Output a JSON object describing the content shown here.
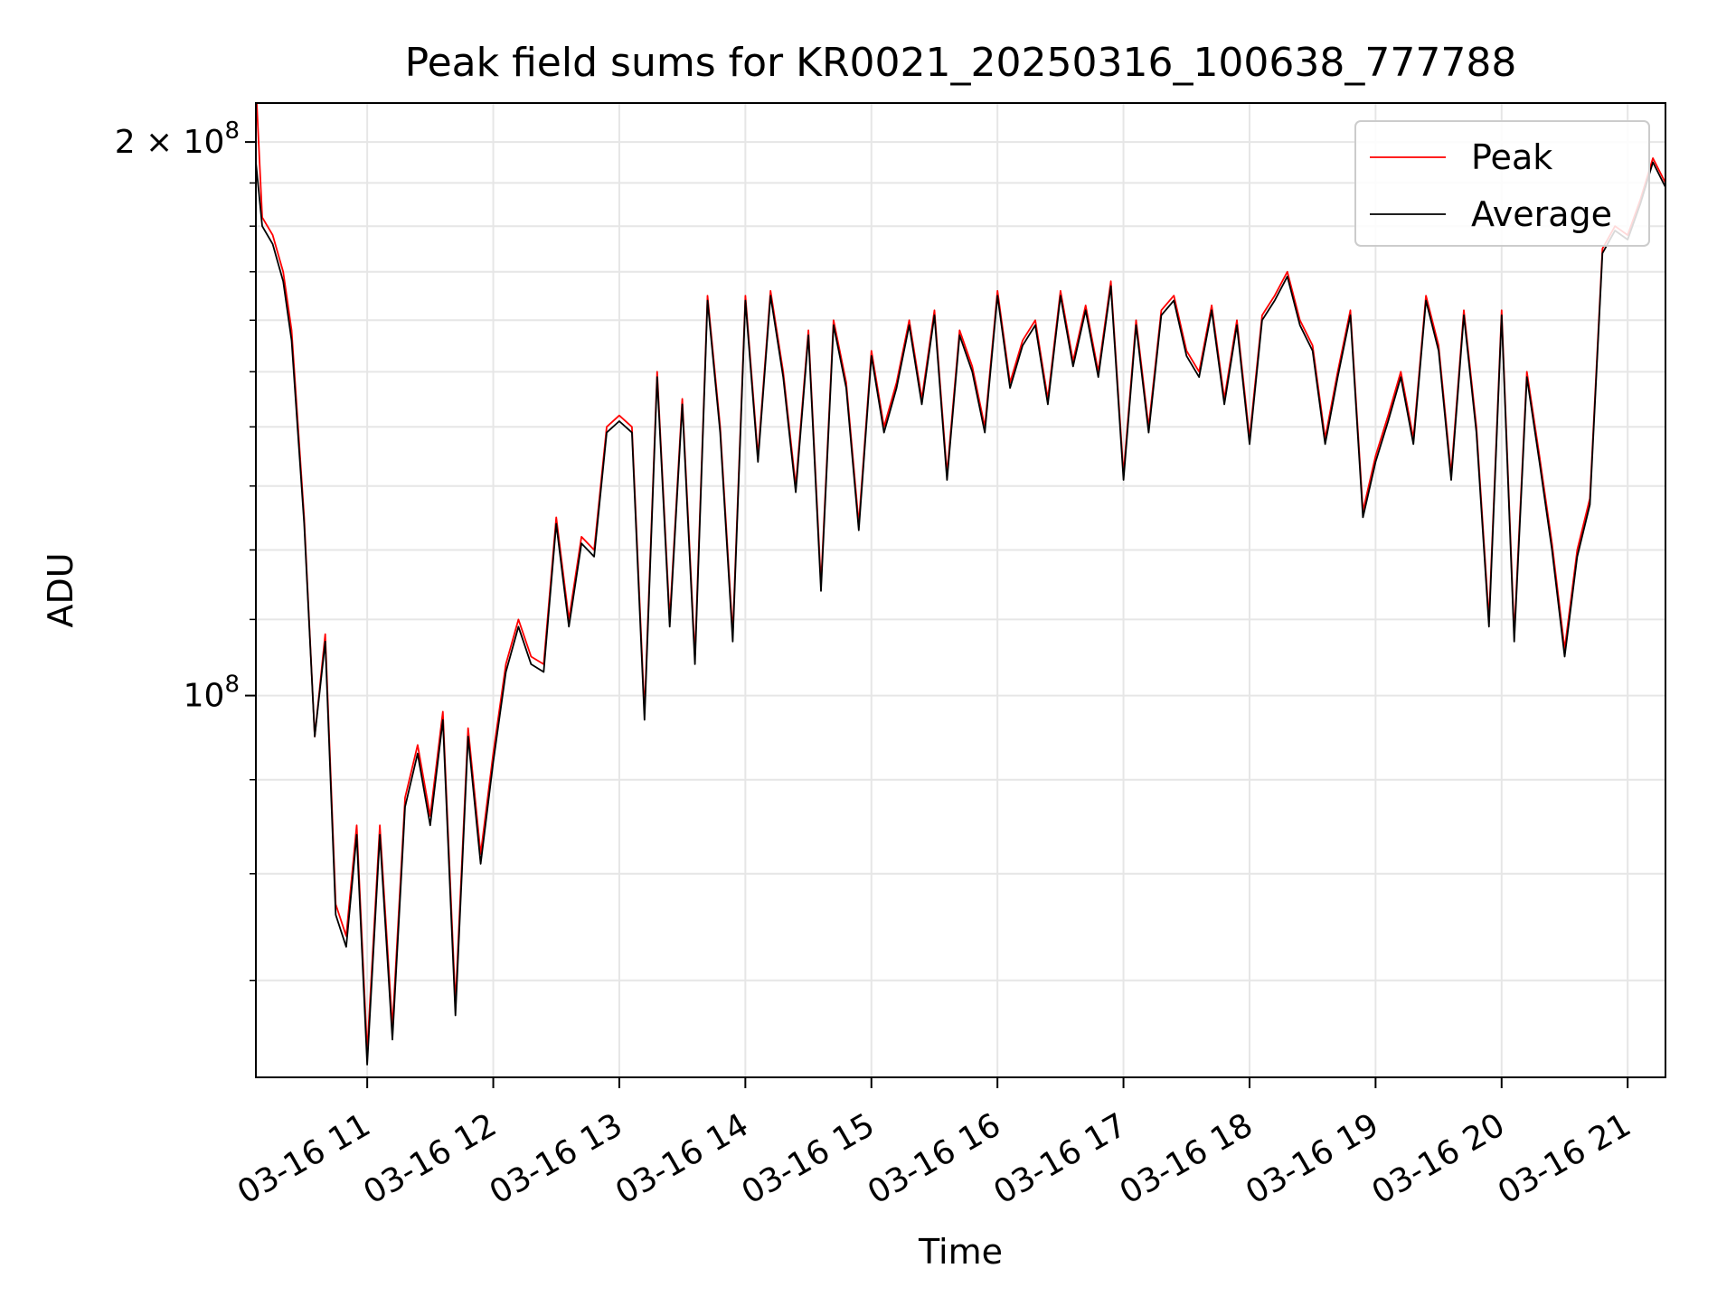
{
  "chart_data": {
    "type": "line",
    "title": "Peak field sums for KR0021_20250316_100638_777788",
    "xlabel": "Time",
    "ylabel": "ADU",
    "y_scale": "log",
    "ylim": [
      62000000,
      210000000
    ],
    "xlim": [
      "03-16 10:07",
      "03-16 21:18"
    ],
    "grid": true,
    "legend_position": "top-right",
    "x_ticks": [
      "03-16 11",
      "03-16 12",
      "03-16 13",
      "03-16 14",
      "03-16 15",
      "03-16 16",
      "03-16 17",
      "03-16 18",
      "03-16 19",
      "03-16 20",
      "03-16 21"
    ],
    "y_ticks": [
      {
        "value": 100000000,
        "base": "10",
        "exponent": "8",
        "prefix": ""
      },
      {
        "value": 200000000,
        "base": "10",
        "exponent": "8",
        "prefix": "2 × "
      }
    ],
    "x": [
      "03-16 10:07",
      "03-16 10:10",
      "03-16 10:15",
      "03-16 10:20",
      "03-16 10:24",
      "03-16 10:30",
      "03-16 10:35",
      "03-16 10:40",
      "03-16 10:45",
      "03-16 10:50",
      "03-16 10:55",
      "03-16 11:00",
      "03-16 11:06",
      "03-16 11:12",
      "03-16 11:18",
      "03-16 11:24",
      "03-16 11:30",
      "03-16 11:36",
      "03-16 11:42",
      "03-16 11:48",
      "03-16 11:54",
      "03-16 12:00",
      "03-16 12:06",
      "03-16 12:12",
      "03-16 12:18",
      "03-16 12:24",
      "03-16 12:30",
      "03-16 12:36",
      "03-16 12:42",
      "03-16 12:48",
      "03-16 12:54",
      "03-16 13:00",
      "03-16 13:06",
      "03-16 13:12",
      "03-16 13:18",
      "03-16 13:24",
      "03-16 13:30",
      "03-16 13:36",
      "03-16 13:42",
      "03-16 13:48",
      "03-16 13:54",
      "03-16 14:00",
      "03-16 14:06",
      "03-16 14:12",
      "03-16 14:18",
      "03-16 14:24",
      "03-16 14:30",
      "03-16 14:36",
      "03-16 14:42",
      "03-16 14:48",
      "03-16 14:54",
      "03-16 15:00",
      "03-16 15:06",
      "03-16 15:12",
      "03-16 15:18",
      "03-16 15:24",
      "03-16 15:30",
      "03-16 15:36",
      "03-16 15:42",
      "03-16 15:48",
      "03-16 15:54",
      "03-16 16:00",
      "03-16 16:06",
      "03-16 16:12",
      "03-16 16:18",
      "03-16 16:24",
      "03-16 16:30",
      "03-16 16:36",
      "03-16 16:42",
      "03-16 16:48",
      "03-16 16:54",
      "03-16 17:00",
      "03-16 17:06",
      "03-16 17:12",
      "03-16 17:18",
      "03-16 17:24",
      "03-16 17:30",
      "03-16 17:36",
      "03-16 17:42",
      "03-16 17:48",
      "03-16 17:54",
      "03-16 18:00",
      "03-16 18:06",
      "03-16 18:12",
      "03-16 18:18",
      "03-16 18:24",
      "03-16 18:30",
      "03-16 18:36",
      "03-16 18:42",
      "03-16 18:48",
      "03-16 18:54",
      "03-16 19:00",
      "03-16 19:06",
      "03-16 19:12",
      "03-16 19:18",
      "03-16 19:24",
      "03-16 19:30",
      "03-16 19:36",
      "03-16 19:42",
      "03-16 19:48",
      "03-16 19:54",
      "03-16 20:00",
      "03-16 20:06",
      "03-16 20:12",
      "03-16 20:18",
      "03-16 20:24",
      "03-16 20:30",
      "03-16 20:36",
      "03-16 20:42",
      "03-16 20:48",
      "03-16 20:54",
      "03-16 21:00",
      "03-16 21:06",
      "03-16 21:12",
      "03-16 21:18"
    ],
    "series": [
      {
        "name": "Peak",
        "color": "#ff0000",
        "values": [
          215000000,
          182000000,
          178000000,
          170000000,
          158000000,
          125000000,
          95000000,
          108000000,
          77000000,
          74000000,
          85000000,
          64000000,
          85000000,
          66000000,
          88000000,
          94000000,
          86000000,
          98000000,
          68000000,
          96000000,
          82000000,
          93000000,
          104000000,
          110000000,
          105000000,
          104000000,
          125000000,
          110000000,
          122000000,
          120000000,
          140000000,
          142000000,
          140000000,
          98000000,
          150000000,
          110000000,
          145000000,
          105000000,
          165000000,
          140000000,
          108000000,
          165000000,
          135000000,
          166000000,
          150000000,
          130000000,
          158000000,
          115000000,
          160000000,
          148000000,
          124000000,
          154000000,
          140000000,
          148000000,
          160000000,
          145000000,
          162000000,
          132000000,
          158000000,
          151000000,
          140000000,
          166000000,
          148000000,
          156000000,
          160000000,
          145000000,
          166000000,
          152000000,
          163000000,
          150000000,
          168000000,
          132000000,
          160000000,
          140000000,
          162000000,
          165000000,
          154000000,
          150000000,
          163000000,
          145000000,
          160000000,
          138000000,
          161000000,
          165000000,
          170000000,
          160000000,
          155000000,
          138000000,
          150000000,
          162000000,
          126000000,
          135000000,
          142000000,
          150000000,
          138000000,
          165000000,
          155000000,
          132000000,
          162000000,
          140000000,
          110000000,
          162000000,
          108000000,
          150000000,
          135000000,
          121000000,
          106000000,
          120000000,
          128000000,
          175000000,
          180000000,
          178000000,
          186000000,
          196000000,
          190000000
        ]
      },
      {
        "name": "Average",
        "color": "#000000",
        "values": [
          195000000,
          180000000,
          176000000,
          168000000,
          156000000,
          124000000,
          95000000,
          107000000,
          76000000,
          73000000,
          84000000,
          63000000,
          84000000,
          65000000,
          87000000,
          93000000,
          85000000,
          97000000,
          67000000,
          95000000,
          81000000,
          92000000,
          103000000,
          109000000,
          104000000,
          103000000,
          124000000,
          109000000,
          121000000,
          119000000,
          139000000,
          141000000,
          139000000,
          97000000,
          149000000,
          109000000,
          144000000,
          104000000,
          164000000,
          139000000,
          107000000,
          164000000,
          134000000,
          165000000,
          149000000,
          129000000,
          157000000,
          114000000,
          159000000,
          147000000,
          123000000,
          153000000,
          139000000,
          147000000,
          159000000,
          144000000,
          161000000,
          131000000,
          157000000,
          150000000,
          139000000,
          165000000,
          147000000,
          155000000,
          159000000,
          144000000,
          165000000,
          151000000,
          162000000,
          149000000,
          167000000,
          131000000,
          159000000,
          139000000,
          161000000,
          164000000,
          153000000,
          149000000,
          162000000,
          144000000,
          159000000,
          137000000,
          160000000,
          164000000,
          169000000,
          159000000,
          154000000,
          137000000,
          149000000,
          161000000,
          125000000,
          134000000,
          141000000,
          149000000,
          137000000,
          164000000,
          154000000,
          131000000,
          161000000,
          139000000,
          109000000,
          161000000,
          107000000,
          149000000,
          134000000,
          120000000,
          105000000,
          119000000,
          127000000,
          174000000,
          179000000,
          177000000,
          185000000,
          195000000,
          189000000
        ]
      }
    ]
  }
}
